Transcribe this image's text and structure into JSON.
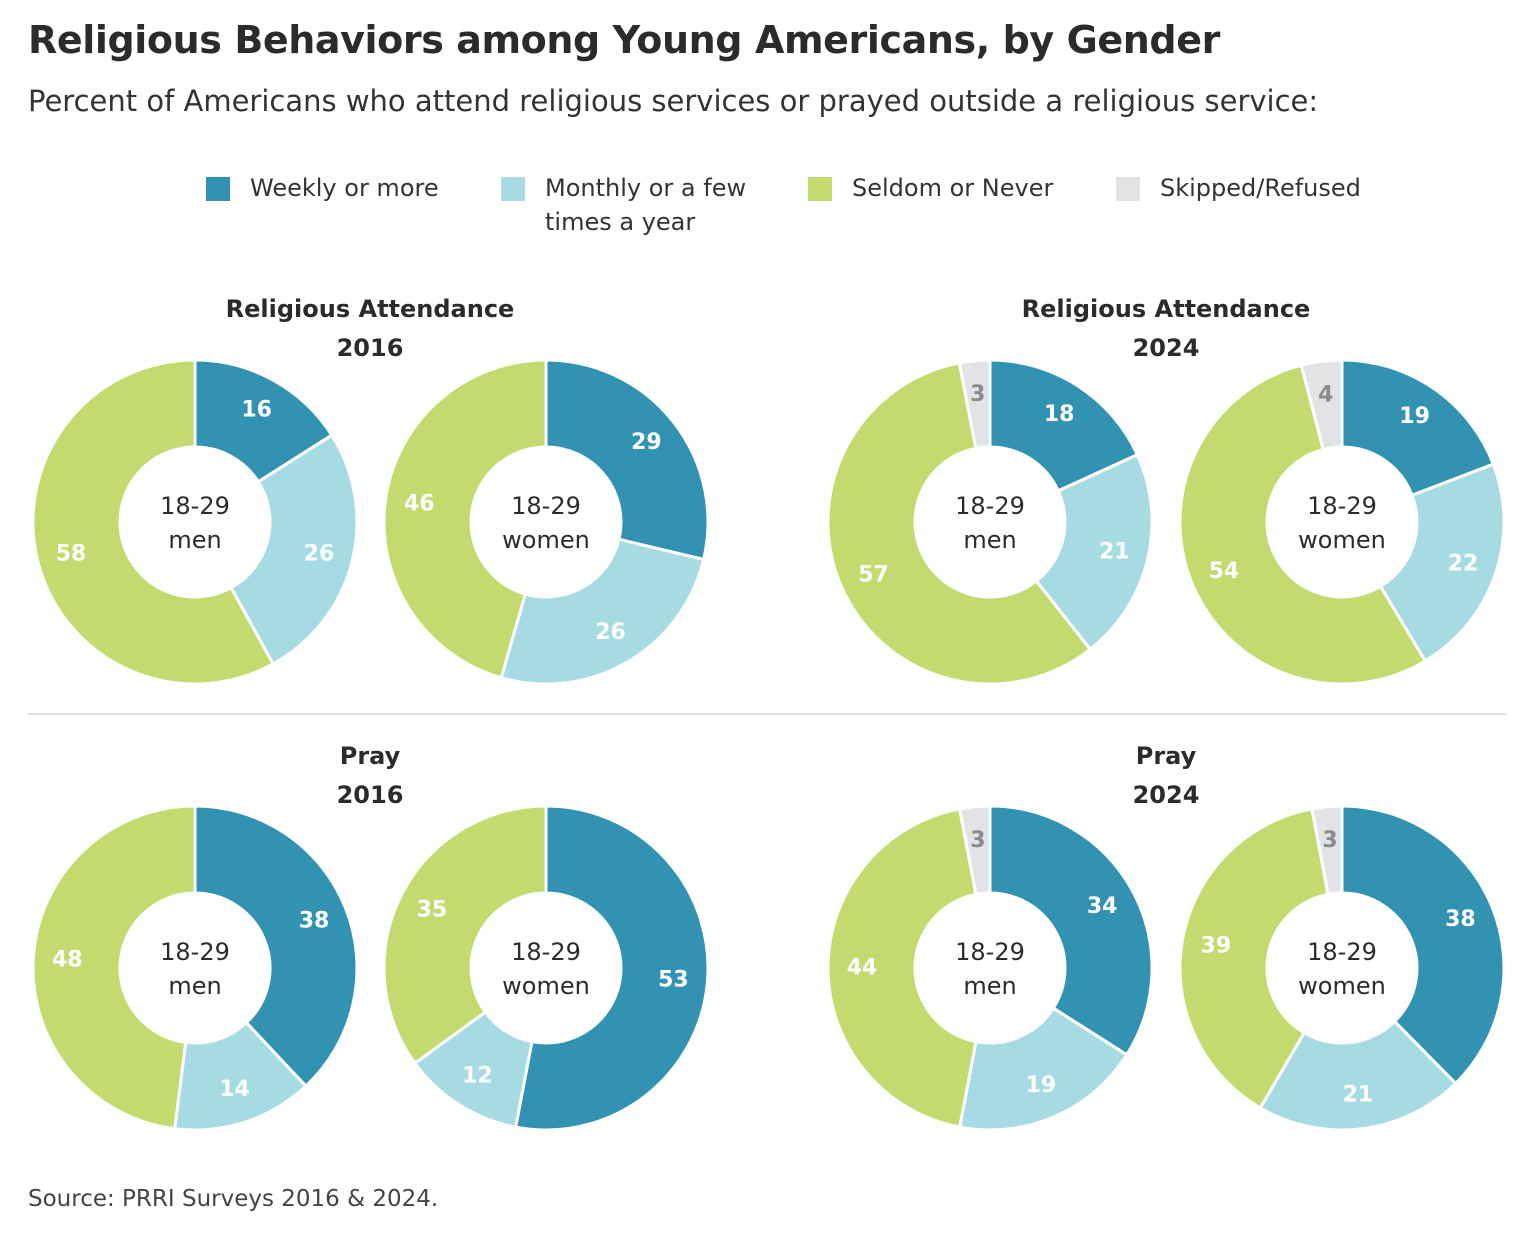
{
  "title": "Religious Behaviors among Young Americans, by Gender",
  "subtitle": "Percent of Americans who attend religious services or prayed outside a religious service:",
  "legend": [
    {
      "label": "Weekly or more",
      "color": "#3292b2"
    },
    {
      "label": "Monthly or a few times a year",
      "color": "#a6dbe4"
    },
    {
      "label": "Seldom or Never",
      "color": "#c2da6e"
    },
    {
      "label": "Skipped/Refused",
      "color": "#e2e3e5"
    }
  ],
  "panels": [
    {
      "title_line1": "Religious Attendance",
      "title_line2": "2016"
    },
    {
      "title_line1": "Religious Attendance",
      "title_line2": "2024"
    },
    {
      "title_line1": "Pray",
      "title_line2": "2016"
    },
    {
      "title_line1": "Pray",
      "title_line2": "2024"
    }
  ],
  "source": "Source: PRRI Surveys 2016 & 2024.",
  "chart_data": [
    {
      "type": "pie",
      "panel": "Religious Attendance 2016",
      "center_label": [
        "18-29",
        "men"
      ],
      "categories": [
        "Weekly or more",
        "Monthly or a few times a year",
        "Seldom or Never"
      ],
      "values": [
        16,
        26,
        58
      ]
    },
    {
      "type": "pie",
      "panel": "Religious Attendance 2016",
      "center_label": [
        "18-29",
        "women"
      ],
      "categories": [
        "Weekly or more",
        "Monthly or a few times a year",
        "Seldom or Never"
      ],
      "values": [
        29,
        26,
        46
      ]
    },
    {
      "type": "pie",
      "panel": "Religious Attendance 2024",
      "center_label": [
        "18-29",
        "men"
      ],
      "categories": [
        "Weekly or more",
        "Monthly or a few times a year",
        "Seldom or Never",
        "Skipped/Refused"
      ],
      "values": [
        18,
        21,
        57,
        3
      ]
    },
    {
      "type": "pie",
      "panel": "Religious Attendance 2024",
      "center_label": [
        "18-29",
        "women"
      ],
      "categories": [
        "Weekly or more",
        "Monthly or a few times a year",
        "Seldom or Never",
        "Skipped/Refused"
      ],
      "values": [
        19,
        22,
        54,
        4
      ]
    },
    {
      "type": "pie",
      "panel": "Pray 2016",
      "center_label": [
        "18-29",
        "men"
      ],
      "categories": [
        "Weekly or more",
        "Monthly or a few times a year",
        "Seldom or Never"
      ],
      "values": [
        38,
        14,
        48
      ]
    },
    {
      "type": "pie",
      "panel": "Pray 2016",
      "center_label": [
        "18-29",
        "women"
      ],
      "categories": [
        "Weekly or more",
        "Monthly or a few times a year",
        "Seldom or Never"
      ],
      "values": [
        53,
        12,
        35
      ]
    },
    {
      "type": "pie",
      "panel": "Pray 2024",
      "center_label": [
        "18-29",
        "men"
      ],
      "categories": [
        "Weekly or more",
        "Monthly or a few times a year",
        "Seldom or Never",
        "Skipped/Refused"
      ],
      "values": [
        34,
        19,
        44,
        3
      ]
    },
    {
      "type": "pie",
      "panel": "Pray 2024",
      "center_label": [
        "18-29",
        "women"
      ],
      "categories": [
        "Weekly or more",
        "Monthly or a few times a year",
        "Seldom or Never",
        "Skipped/Refused"
      ],
      "values": [
        38,
        21,
        39,
        3
      ]
    }
  ]
}
